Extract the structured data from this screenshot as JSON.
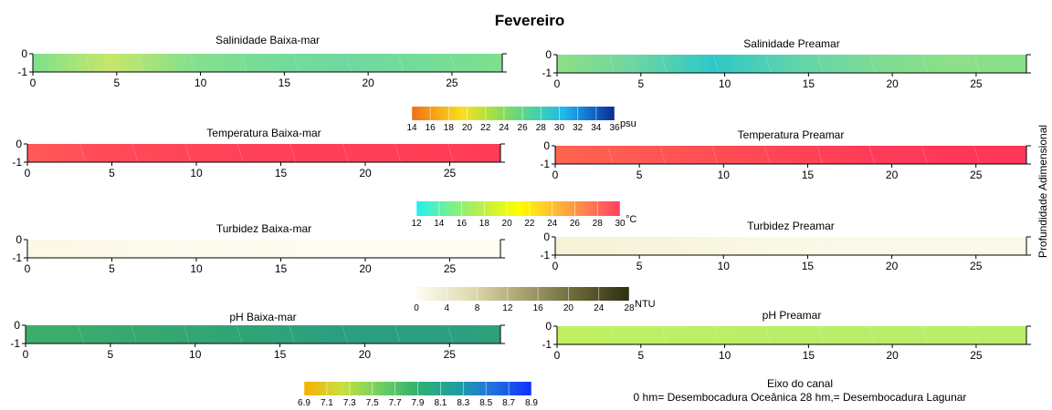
{
  "title": "Fevereiro",
  "right_label": "Profundidade Adimensional",
  "footer": {
    "line1": "Eixo do canal",
    "line2": "0 hm= Desembocadura Oceânica  28 hm,= Desembocadura Lagunar"
  },
  "chart_data": [
    {
      "type": "heatmap",
      "title": "Salinidade Baixa-mar",
      "xlim": [
        0,
        28
      ],
      "ylim": [
        -1,
        0
      ],
      "xticks": [
        0,
        5,
        10,
        15,
        20,
        25
      ],
      "yticks": [
        0,
        -1
      ],
      "fill_colors": [
        "#7ee08e",
        "#c8e66a",
        "#86e18c",
        "#74dc98",
        "#6ed8a0",
        "#74dc98",
        "#7ee08e"
      ]
    },
    {
      "type": "heatmap",
      "title": "Salinidade Preamar",
      "xlim": [
        0,
        28
      ],
      "ylim": [
        -1,
        0
      ],
      "xticks": [
        0,
        5,
        10,
        15,
        20,
        25
      ],
      "yticks": [
        0,
        -1
      ],
      "fill_colors": [
        "#8ee086",
        "#6cd6a4",
        "#2ec8c8",
        "#5fd4ae",
        "#7adc94",
        "#8ce088",
        "#88e08a"
      ]
    },
    {
      "type": "heatmap",
      "title": "Temperatura Baixa-mar",
      "xlim": [
        0,
        28
      ],
      "ylim": [
        -1,
        0
      ],
      "xticks": [
        0,
        5,
        10,
        15,
        20,
        25
      ],
      "yticks": [
        0,
        -1
      ],
      "fill_colors": [
        "#ff5a58",
        "#ff4a58",
        "#ff4658",
        "#ff4058",
        "#ff3e58",
        "#ff3e56",
        "#ff3c56"
      ]
    },
    {
      "type": "heatmap",
      "title": "Temperatura Preamar",
      "xlim": [
        0,
        28
      ],
      "ylim": [
        -1,
        0
      ],
      "xticks": [
        0,
        5,
        10,
        15,
        20,
        25
      ],
      "yticks": [
        0,
        -1
      ],
      "fill_colors": [
        "#ff6450",
        "#ff5a54",
        "#ff4e54",
        "#ff4456",
        "#ff3c58",
        "#ff3858",
        "#ff3858"
      ]
    },
    {
      "type": "heatmap",
      "title": "Turbidez Baixa-mar",
      "xlim": [
        0,
        28
      ],
      "ylim": [
        -1,
        0
      ],
      "xticks": [
        0,
        5,
        10,
        15,
        20,
        25
      ],
      "yticks": [
        0,
        -1
      ],
      "fill_colors": [
        "#fbf8e6",
        "#fcf9ea",
        "#fdfbee",
        "#fdfbee",
        "#fdfcf0",
        "#fdfcf0",
        "#fdfcf0"
      ]
    },
    {
      "type": "heatmap",
      "title": "Turbidez Preamar",
      "xlim": [
        0,
        28
      ],
      "ylim": [
        -1,
        0
      ],
      "xticks": [
        0,
        5,
        10,
        15,
        20,
        25
      ],
      "yticks": [
        0,
        -1
      ],
      "fill_colors": [
        "#f6f2d4",
        "#f8f3da",
        "#f9f6e0",
        "#fbf8e6",
        "#fbf9e8",
        "#fbf9e8",
        "#fbf9e8"
      ]
    },
    {
      "type": "heatmap",
      "title": "pH Baixa-mar",
      "xlim": [
        0,
        28
      ],
      "ylim": [
        -1,
        0
      ],
      "xticks": [
        0,
        5,
        10,
        15,
        20,
        25
      ],
      "yticks": [
        0,
        -1
      ],
      "fill_colors": [
        "#3cae6a",
        "#38aa6e",
        "#34a672",
        "#30a478",
        "#2c9e80",
        "#2c9e80",
        "#30a07c"
      ]
    },
    {
      "type": "heatmap",
      "title": "pH Preamar",
      "xlim": [
        0,
        28
      ],
      "ylim": [
        -1,
        0
      ],
      "xticks": [
        0,
        5,
        10,
        15,
        20,
        25
      ],
      "yticks": [
        0,
        -1
      ],
      "fill_colors": [
        "#c0f060",
        "#bef064",
        "#bcee66",
        "#baee68",
        "#baee68",
        "#baee68",
        "#baee68"
      ]
    }
  ],
  "colorbars": [
    {
      "unit": "psu",
      "ticks": [
        "14",
        "16",
        "18",
        "20",
        "22",
        "24",
        "26",
        "28",
        "30",
        "32",
        "34",
        "36"
      ],
      "colors": [
        "#f07010",
        "#f8a818",
        "#f8e020",
        "#b0e040",
        "#70d870",
        "#40d0b0",
        "#20b8e8",
        "#1070d0",
        "#0c2c90"
      ]
    },
    {
      "unit": "°C",
      "ticks": [
        "12",
        "14",
        "16",
        "18",
        "20",
        "22",
        "24",
        "26",
        "28",
        "30"
      ],
      "colors": [
        "#20f0f0",
        "#78f090",
        "#c0f040",
        "#ffff00",
        "#ffc030",
        "#ff8050",
        "#ff4060"
      ]
    },
    {
      "unit": "NTU",
      "ticks": [
        "0",
        "4",
        "8",
        "12",
        "16",
        "20",
        "24",
        "28"
      ],
      "colors": [
        "#fdfcf4",
        "#e0dcb0",
        "#a8a270",
        "#6a6838",
        "#2e2e10"
      ]
    },
    {
      "unit": "",
      "ticks": [
        "6.9",
        "7.1",
        "7.3",
        "7.5",
        "7.7",
        "7.9",
        "8.1",
        "8.3",
        "8.5",
        "8.7",
        "8.9"
      ],
      "colors": [
        "#f8b000",
        "#c8e040",
        "#70d060",
        "#30b070",
        "#20a0a0",
        "#2070e0",
        "#1030f8"
      ]
    }
  ]
}
